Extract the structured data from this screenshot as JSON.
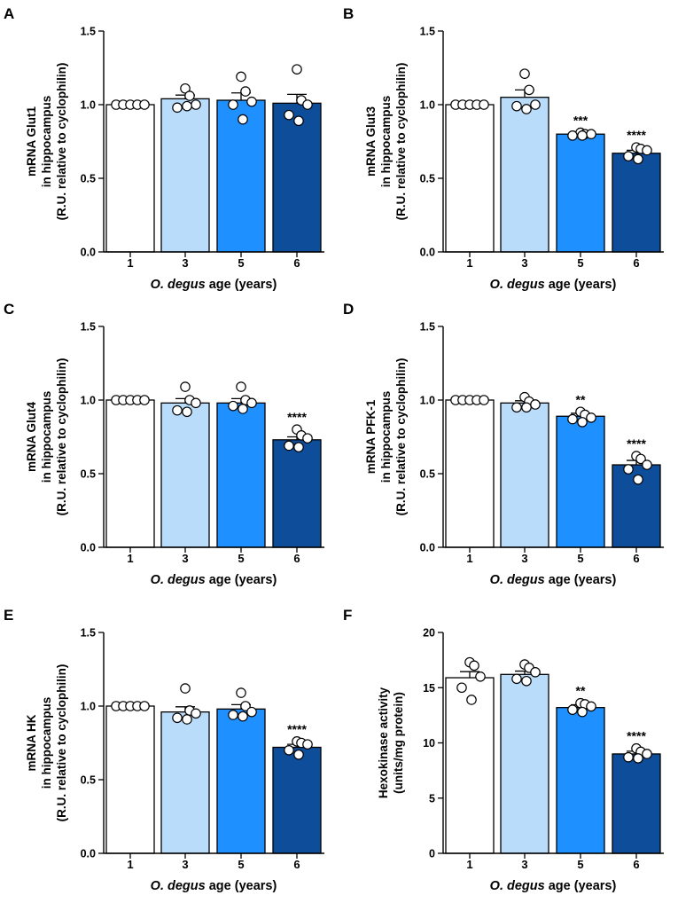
{
  "figure": {
    "xlabel_italic": "O. degus",
    "xlabel_rest": " age (years)"
  },
  "colors": {
    "age_1": "#ffffff",
    "age_3": "#b9dcfb",
    "age_5": "#1e90ff",
    "age_6": "#0d4d9a",
    "stroke": "#000000",
    "point_fill": "#ffffff"
  },
  "chart_data": [
    {
      "panel": "A",
      "type": "bar",
      "categories": [
        "1",
        "3",
        "5",
        "6"
      ],
      "ylim": [
        0,
        1.5
      ],
      "yticks": [
        "0.0",
        "0.5",
        "1.0",
        "1.5"
      ],
      "ylabel_lines": [
        "mRNA Glut1",
        "in hippocampus",
        "(R.U. relative to cyclophilin)"
      ],
      "values": [
        1.0,
        1.04,
        1.03,
        1.01
      ],
      "sem": [
        0,
        0.025,
        0.05,
        0.06
      ],
      "points": [
        [
          1,
          1,
          1,
          1,
          1
        ],
        [
          1.11,
          1.06,
          1.0,
          0.98,
          0.99
        ],
        [
          1.19,
          1.09,
          1.02,
          1.0,
          0.9
        ],
        [
          1.24,
          1.03,
          1.0,
          0.93,
          0.89
        ]
      ],
      "significance": [
        "",
        "",
        "",
        ""
      ]
    },
    {
      "panel": "B",
      "type": "bar",
      "categories": [
        "1",
        "3",
        "5",
        "6"
      ],
      "ylim": [
        0,
        1.5
      ],
      "yticks": [
        "0.0",
        "0.5",
        "1.0",
        "1.5"
      ],
      "ylabel_lines": [
        "mRNA Glut3",
        "in hippocampus",
        "(R.U. relative to cyclophilin)"
      ],
      "values": [
        1.0,
        1.05,
        0.8,
        0.67
      ],
      "sem": [
        0,
        0.05,
        0.01,
        0.02
      ],
      "points": [
        [
          1,
          1,
          1,
          1,
          1
        ],
        [
          1.21,
          1.1,
          1.0,
          0.99,
          0.97
        ],
        [
          0.81,
          0.8,
          0.8,
          0.79,
          0.79
        ],
        [
          0.71,
          0.7,
          0.69,
          0.65,
          0.63
        ]
      ],
      "significance": [
        "",
        "",
        "***",
        "****"
      ]
    },
    {
      "panel": "C",
      "type": "bar",
      "categories": [
        "1",
        "3",
        "5",
        "6"
      ],
      "ylim": [
        0,
        1.5
      ],
      "yticks": [
        "0.0",
        "0.5",
        "1.0",
        "1.5"
      ],
      "ylabel_lines": [
        "mRNA Glut4",
        "in hippocampus",
        "(R.U. relative to cyclophilin)"
      ],
      "values": [
        1.0,
        0.98,
        0.98,
        0.73
      ],
      "sem": [
        0,
        0.03,
        0.03,
        0.02
      ],
      "points": [
        [
          1,
          1,
          1,
          1,
          1
        ],
        [
          1.09,
          1.0,
          0.98,
          0.93,
          0.92
        ],
        [
          1.09,
          1.0,
          0.98,
          0.96,
          0.94
        ],
        [
          0.8,
          0.76,
          0.74,
          0.69,
          0.68
        ]
      ],
      "significance": [
        "",
        "",
        "",
        "****"
      ]
    },
    {
      "panel": "D",
      "type": "bar",
      "categories": [
        "1",
        "3",
        "5",
        "6"
      ],
      "ylim": [
        0,
        1.5
      ],
      "yticks": [
        "0.0",
        "0.5",
        "1.0",
        "1.5"
      ],
      "ylabel_lines": [
        "mRNA PFK-1",
        "in hippocampus",
        "(R.U. relative to cyclophilin)"
      ],
      "values": [
        1.0,
        0.98,
        0.89,
        0.56
      ],
      "sem": [
        0,
        0.015,
        0.02,
        0.03
      ],
      "points": [
        [
          1,
          1,
          1,
          1,
          1
        ],
        [
          1.02,
          0.99,
          0.97,
          0.95,
          0.95
        ],
        [
          0.92,
          0.9,
          0.88,
          0.87,
          0.85
        ],
        [
          0.62,
          0.6,
          0.56,
          0.53,
          0.46
        ]
      ],
      "significance": [
        "",
        "",
        "**",
        "****"
      ]
    },
    {
      "panel": "E",
      "type": "bar",
      "categories": [
        "1",
        "3",
        "5",
        "6"
      ],
      "ylim": [
        0,
        1.5
      ],
      "yticks": [
        "0.0",
        "0.5",
        "1.0",
        "1.5"
      ],
      "ylabel_lines": [
        "mRNA HK",
        "in hippocampus",
        "(R.U. relative to cyclophilin)"
      ],
      "values": [
        1.0,
        0.96,
        0.98,
        0.72
      ],
      "sem": [
        0,
        0.035,
        0.03,
        0.02
      ],
      "points": [
        [
          1,
          1,
          1,
          1,
          1
        ],
        [
          1.12,
          0.97,
          0.95,
          0.92,
          0.91
        ],
        [
          1.09,
          1.0,
          0.96,
          0.94,
          0.93
        ],
        [
          0.76,
          0.75,
          0.74,
          0.7,
          0.67
        ]
      ],
      "significance": [
        "",
        "",
        "",
        "****"
      ]
    },
    {
      "panel": "F",
      "type": "bar",
      "categories": [
        "1",
        "3",
        "5",
        "6"
      ],
      "ylim": [
        0,
        20
      ],
      "yticks": [
        "0",
        "5",
        "10",
        "15",
        "20"
      ],
      "ylabel_lines": [
        "Hexokinase activity",
        "(units/mg protein)"
      ],
      "values": [
        15.9,
        16.2,
        13.2,
        9.0
      ],
      "sem": [
        0.55,
        0.3,
        0.25,
        0.25
      ],
      "points": [
        [
          17.3,
          17.0,
          16.0,
          15.0,
          13.9
        ],
        [
          17.1,
          16.8,
          16.4,
          15.8,
          15.6
        ],
        [
          13.6,
          13.5,
          13.3,
          13.0,
          12.8
        ],
        [
          9.5,
          9.2,
          9.0,
          8.7,
          8.6
        ]
      ],
      "significance": [
        "",
        "",
        "**",
        "****"
      ]
    }
  ]
}
